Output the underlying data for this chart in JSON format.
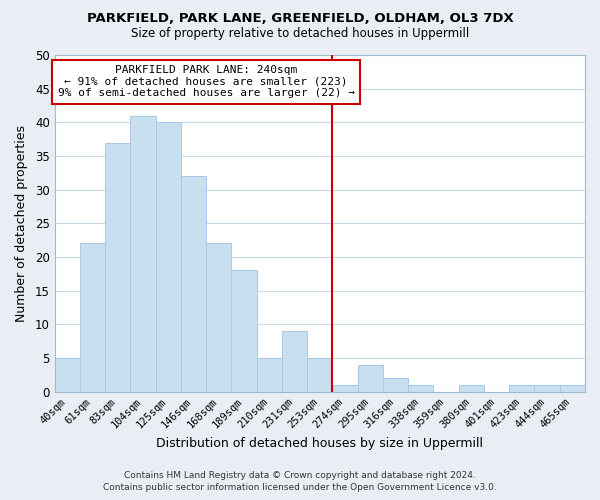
{
  "title": "PARKFIELD, PARK LANE, GREENFIELD, OLDHAM, OL3 7DX",
  "subtitle": "Size of property relative to detached houses in Uppermill",
  "xlabel": "Distribution of detached houses by size in Uppermill",
  "ylabel": "Number of detached properties",
  "bar_color": "#c8dff0",
  "bar_edge_color": "#a8c8e8",
  "categories": [
    "40sqm",
    "61sqm",
    "83sqm",
    "104sqm",
    "125sqm",
    "146sqm",
    "168sqm",
    "189sqm",
    "210sqm",
    "231sqm",
    "253sqm",
    "274sqm",
    "295sqm",
    "316sqm",
    "338sqm",
    "359sqm",
    "380sqm",
    "401sqm",
    "423sqm",
    "444sqm",
    "465sqm"
  ],
  "values": [
    5,
    22,
    37,
    41,
    40,
    32,
    22,
    18,
    5,
    9,
    5,
    1,
    4,
    2,
    1,
    0,
    1,
    0,
    1,
    1,
    1
  ],
  "ylim": [
    0,
    50
  ],
  "yticks": [
    0,
    5,
    10,
    15,
    20,
    25,
    30,
    35,
    40,
    45,
    50
  ],
  "vline_x": 10.5,
  "vline_color": "#cc0000",
  "annotation_title": "PARKFIELD PARK LANE: 240sqm",
  "annotation_line1": "← 91% of detached houses are smaller (223)",
  "annotation_line2": "9% of semi-detached houses are larger (22) →",
  "footer_line1": "Contains HM Land Registry data © Crown copyright and database right 2024.",
  "footer_line2": "Contains public sector information licensed under the Open Government Licence v3.0.",
  "background_color": "#e8eef4",
  "plot_background": "#ffffff",
  "grid_color": "#c8d8e8"
}
